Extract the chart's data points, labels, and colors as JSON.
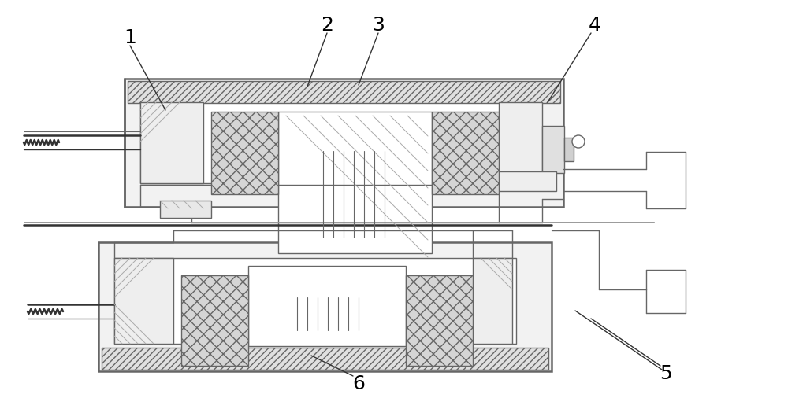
{
  "bg_color": "#ffffff",
  "lc": "#666666",
  "lc_dark": "#333333",
  "lw": 1.0,
  "lw2": 1.8,
  "fill_white": "#ffffff",
  "fill_light": "#f0f0f0",
  "fill_gray": "#d8d8d8",
  "fill_hatch": "#e0e0e0"
}
